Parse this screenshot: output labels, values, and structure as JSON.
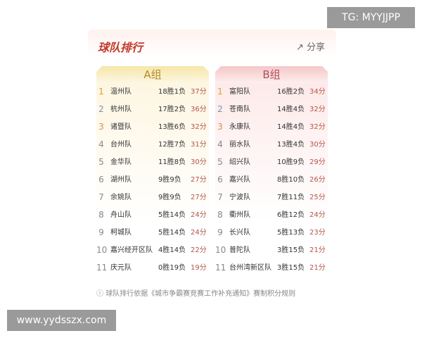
{
  "watermark_top": "TG: MYYJJPP",
  "watermark_bottom": "www.yydsszx.com",
  "header": {
    "title": "球队排行",
    "share": "分享"
  },
  "groups": [
    {
      "name": "A组",
      "rows": [
        [
          1,
          "温州队",
          "18胜1负",
          "37分"
        ],
        [
          2,
          "杭州队",
          "17胜2负",
          "36分"
        ],
        [
          3,
          "诸暨队",
          "13胜6负",
          "32分"
        ],
        [
          4,
          "台州队",
          "12胜7负",
          "31分"
        ],
        [
          5,
          "金华队",
          "11胜8负",
          "30分"
        ],
        [
          6,
          "湖州队",
          "9胜9负",
          "27分"
        ],
        [
          7,
          "余姚队",
          "9胜9负",
          "27分"
        ],
        [
          8,
          "舟山队",
          "5胜14负",
          "24分"
        ],
        [
          9,
          "柯城队",
          "5胜14负",
          "24分"
        ],
        [
          10,
          "嘉兴经开区队",
          "4胜14负",
          "22分"
        ],
        [
          11,
          "庆元队",
          "0胜19负",
          "19分"
        ]
      ]
    },
    {
      "name": "B组",
      "rows": [
        [
          1,
          "富阳队",
          "16胜2负",
          "34分"
        ],
        [
          2,
          "苍南队",
          "14胜4负",
          "32分"
        ],
        [
          3,
          "永康队",
          "14胜4负",
          "32分"
        ],
        [
          4,
          "丽水队",
          "13胜4负",
          "30分"
        ],
        [
          5,
          "绍兴队",
          "10胜9负",
          "29分"
        ],
        [
          6,
          "嘉兴队",
          "8胜10负",
          "26分"
        ],
        [
          7,
          "宁波队",
          "7胜11负",
          "25分"
        ],
        [
          8,
          "衢州队",
          "6胜12负",
          "24分"
        ],
        [
          9,
          "长兴队",
          "5胜13负",
          "23分"
        ],
        [
          10,
          "普陀队",
          "3胜15负",
          "21分"
        ],
        [
          11,
          "台州湾新区队",
          "3胜15负",
          "21分"
        ]
      ]
    }
  ],
  "footnote": "球队排行依据《城市争霸赛竞赛工作补充通知》赛制积分规则"
}
